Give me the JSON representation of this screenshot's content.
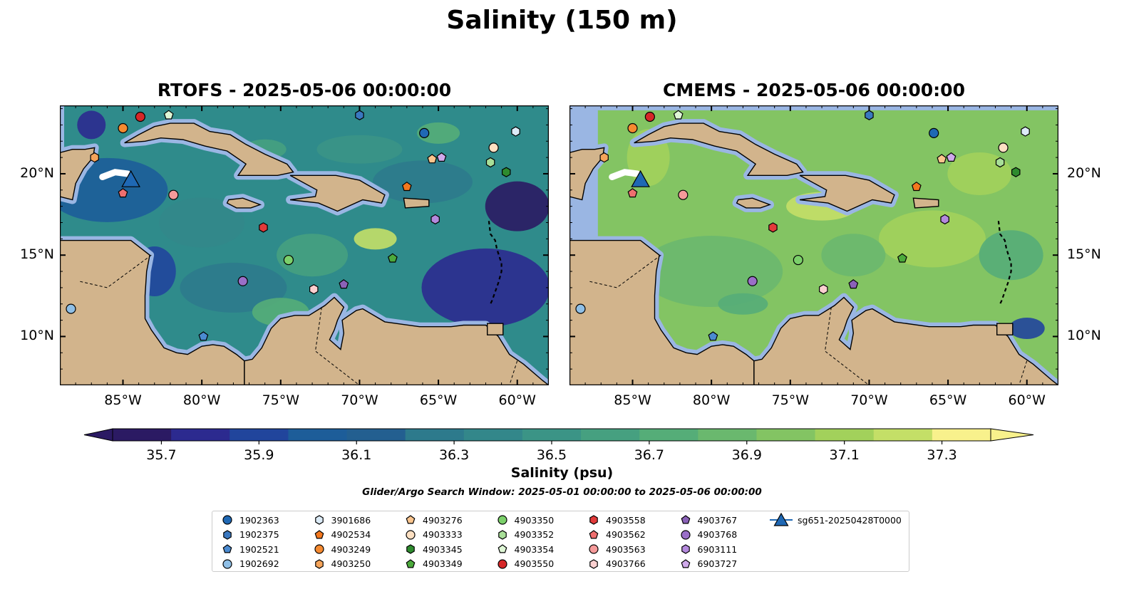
{
  "figure_title": "Salinity (150 m)",
  "panels": [
    {
      "title": "RTOFS - 2025-05-06 00:00:00",
      "model": "RTOFS"
    },
    {
      "title": "CMEMS - 2025-05-06 00:00:00",
      "model": "CMEMS"
    }
  ],
  "map": {
    "lon_range": [
      -89,
      -58
    ],
    "lat_range": [
      7,
      24.2
    ],
    "lon_ticks": [
      {
        "value": -85,
        "label": "85°W"
      },
      {
        "value": -80,
        "label": "80°W"
      },
      {
        "value": -75,
        "label": "75°W"
      },
      {
        "value": -70,
        "label": "70°W"
      },
      {
        "value": -65,
        "label": "65°W"
      },
      {
        "value": -60,
        "label": "60°W"
      }
    ],
    "lat_ticks": [
      {
        "value": 10,
        "label": "10°N"
      },
      {
        "value": 15,
        "label": "15°N"
      },
      {
        "value": 20,
        "label": "20°N"
      }
    ],
    "colors": {
      "land": "#d2b48c",
      "shelf": "#9ab6e3",
      "deep_low": "#2a1c66"
    }
  },
  "colorbar": {
    "label": "Salinity (psu)",
    "min": 35.6,
    "max": 37.4,
    "step": 0.1,
    "extend": "both",
    "ticks": [
      {
        "value": 35.7,
        "label": "35.7"
      },
      {
        "value": 35.9,
        "label": "35.9"
      },
      {
        "value": 36.1,
        "label": "36.1"
      },
      {
        "value": 36.3,
        "label": "36.3"
      },
      {
        "value": 36.5,
        "label": "36.5"
      },
      {
        "value": 36.7,
        "label": "36.7"
      },
      {
        "value": 36.9,
        "label": "36.9"
      },
      {
        "value": 37.1,
        "label": "37.1"
      },
      {
        "value": 37.3,
        "label": "37.3"
      }
    ],
    "colors": [
      "#2b1a63",
      "#2c2a8f",
      "#21459c",
      "#1d5d99",
      "#235f90",
      "#2d7a8c",
      "#33878a",
      "#3b9486",
      "#46a080",
      "#55ad78",
      "#6ab86e",
      "#83c463",
      "#a2d15b",
      "#c4df67",
      "#f8f18c"
    ]
  },
  "search_window": "Glider/Argo Search Window: 2025-05-01 00:00:00 to 2025-05-06 00:00:00",
  "platforms": [
    {
      "id": "1902363",
      "marker": "circle",
      "color": "#1f68b4",
      "lon": -65.9,
      "lat": 22.5
    },
    {
      "id": "1902375",
      "marker": "hexagon",
      "color": "#3a78c0",
      "lon": -70.0,
      "lat": 23.6
    },
    {
      "id": "1902521",
      "marker": "pentagon",
      "color": "#4b8bd1",
      "lon": -79.9,
      "lat": 10.0
    },
    {
      "id": "1902692",
      "marker": "circle",
      "color": "#8fbfe6",
      "lon": -88.3,
      "lat": 11.7
    },
    {
      "id": "3901686",
      "marker": "hexagon",
      "color": "#dcebf7",
      "lon": -60.1,
      "lat": 22.6
    },
    {
      "id": "4902534",
      "marker": "pentagon",
      "color": "#f4781e",
      "lon": -67.0,
      "lat": 19.2
    },
    {
      "id": "4903249",
      "marker": "circle",
      "color": "#f58a30",
      "lon": -85.0,
      "lat": 22.8
    },
    {
      "id": "4903250",
      "marker": "hexagon",
      "color": "#f5a45a",
      "lon": -86.8,
      "lat": 21.0
    },
    {
      "id": "4903276",
      "marker": "pentagon",
      "color": "#fbc58e",
      "lon": -65.4,
      "lat": 20.9
    },
    {
      "id": "4903333",
      "marker": "circle",
      "color": "#fde0c2",
      "lon": -61.5,
      "lat": 21.6
    },
    {
      "id": "4903345",
      "marker": "hexagon",
      "color": "#2e8b2e",
      "lon": -60.7,
      "lat": 20.1
    },
    {
      "id": "4903349",
      "marker": "pentagon",
      "color": "#4caa3c",
      "lon": -67.9,
      "lat": 14.8
    },
    {
      "id": "4903350",
      "marker": "circle",
      "color": "#7bd06a",
      "lon": -74.5,
      "lat": 14.7
    },
    {
      "id": "4903352",
      "marker": "hexagon",
      "color": "#a8df98",
      "lon": -61.7,
      "lat": 20.7
    },
    {
      "id": "4903354",
      "marker": "pentagon",
      "color": "#dff7d6",
      "lon": -82.1,
      "lat": 23.6
    },
    {
      "id": "4903550",
      "marker": "circle",
      "color": "#d62728",
      "lon": -83.9,
      "lat": 23.5
    },
    {
      "id": "4903558",
      "marker": "hexagon",
      "color": "#e23a3a",
      "lon": -76.1,
      "lat": 16.7
    },
    {
      "id": "4903562",
      "marker": "pentagon",
      "color": "#ef6f6f",
      "lon": -85.0,
      "lat": 18.8
    },
    {
      "id": "4903563",
      "marker": "circle",
      "color": "#f59a9a",
      "lon": -81.8,
      "lat": 18.7
    },
    {
      "id": "4903766",
      "marker": "hexagon",
      "color": "#fbd0d0",
      "lon": -72.9,
      "lat": 12.9
    },
    {
      "id": "4903767",
      "marker": "pentagon",
      "color": "#8b62b8",
      "lon": -71.0,
      "lat": 13.2
    },
    {
      "id": "4903768",
      "marker": "circle",
      "color": "#9a6fc8",
      "lon": -77.4,
      "lat": 13.4
    },
    {
      "id": "6903111",
      "marker": "hexagon",
      "color": "#b489dd",
      "lon": -65.2,
      "lat": 17.2
    },
    {
      "id": "6903727",
      "marker": "pentagon",
      "color": "#cfa9ea",
      "lon": -64.8,
      "lat": 21.0
    }
  ],
  "glider": {
    "id": "sg651-20250428T0000",
    "marker": "triangle",
    "color": "#1f68b4",
    "lon": -84.5,
    "lat": 19.6,
    "track": [
      [
        -86.3,
        19.8
      ],
      [
        -85.5,
        20.1
      ],
      [
        -84.7,
        20.0
      ]
    ]
  }
}
